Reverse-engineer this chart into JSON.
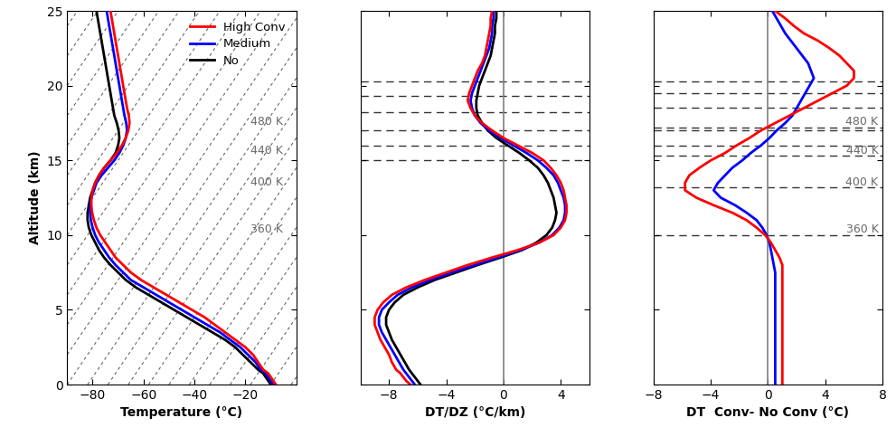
{
  "ylim": [
    0,
    25
  ],
  "yticks": [
    0,
    5,
    10,
    15,
    20,
    25
  ],
  "ylabel": "Altitude (km)",
  "xlim_temp": [
    -90,
    0
  ],
  "xticks_temp": [
    -80,
    -60,
    -40,
    -20
  ],
  "xlabel_temp": "Temperature (°C)",
  "xlim_lapse": [
    -10,
    6
  ],
  "xticks_lapse": [
    -8,
    -4,
    0,
    4
  ],
  "xlabel_lapse": "DT/DZ (°C/km)",
  "xlim_diff": [
    -8,
    8
  ],
  "xticks_diff": [
    -8,
    -4,
    0,
    4,
    8
  ],
  "xlabel_diff": "DT  Conv- No Conv (°C)",
  "color_high": "#ff0000",
  "color_medium": "#0000ff",
  "color_no": "#000000",
  "theta_alts": [
    10.0,
    13.2,
    15.3,
    17.2
  ],
  "theta_labels": [
    "360 K",
    "400 K",
    "440 K",
    "480 K"
  ],
  "alt": [
    0,
    0.25,
    0.5,
    0.75,
    1,
    1.5,
    2,
    2.5,
    3,
    3.5,
    4,
    4.5,
    5,
    5.5,
    6,
    6.5,
    7,
    7.5,
    8,
    8.5,
    9,
    9.5,
    10,
    10.5,
    11,
    11.5,
    12,
    12.5,
    13,
    13.5,
    14,
    14.5,
    15,
    15.5,
    16,
    16.5,
    17,
    17.5,
    18,
    18.5,
    19,
    19.5,
    20,
    20.5,
    21,
    21.5,
    22,
    22.5,
    23,
    23.5,
    24,
    24.5,
    25
  ],
  "temp_high": [
    -8,
    -9,
    -10,
    -11,
    -13,
    -15,
    -17,
    -20,
    -24,
    -28,
    -32,
    -36,
    -41,
    -46,
    -51,
    -56,
    -61,
    -65,
    -68,
    -71,
    -73,
    -75,
    -77,
    -78.5,
    -79.5,
    -80.2,
    -80.5,
    -80.5,
    -80.0,
    -79.0,
    -77.5,
    -75.5,
    -73.0,
    -70.5,
    -68.5,
    -67.0,
    -66.0,
    -65.5,
    -65.8,
    -66.5,
    -67.0,
    -67.5,
    -68.0,
    -68.5,
    -69.0,
    -69.5,
    -70.0,
    -70.5,
    -71.0,
    -71.5,
    -72.0,
    -72.5,
    -73.0
  ],
  "temp_medium": [
    -9,
    -10,
    -11,
    -12,
    -14,
    -16,
    -19,
    -22,
    -26,
    -30,
    -35,
    -40,
    -45,
    -50,
    -55,
    -60,
    -65,
    -68,
    -71,
    -73.5,
    -75.5,
    -77.5,
    -79.0,
    -80.0,
    -80.7,
    -81.0,
    -81.0,
    -80.5,
    -79.5,
    -78.5,
    -76.5,
    -74.0,
    -71.5,
    -69.5,
    -68.0,
    -67.0,
    -66.5,
    -66.8,
    -67.5,
    -68.0,
    -68.5,
    -69.0,
    -69.5,
    -70.0,
    -70.5,
    -71.0,
    -71.5,
    -72.0,
    -72.5,
    -73.0,
    -73.5,
    -74.0,
    -74.5
  ],
  "temp_no": [
    -10,
    -11,
    -12,
    -13,
    -15,
    -18,
    -21,
    -24,
    -28,
    -33,
    -38,
    -43,
    -48,
    -53,
    -58,
    -63,
    -67,
    -70,
    -73,
    -75.5,
    -77.5,
    -79.0,
    -80.5,
    -81.5,
    -82.0,
    -82.0,
    -81.5,
    -81.0,
    -80.0,
    -79.0,
    -77.5,
    -75.5,
    -73.0,
    -71.0,
    -70.0,
    -69.5,
    -69.8,
    -70.5,
    -71.5,
    -72.0,
    -72.5,
    -73.0,
    -73.5,
    -74.0,
    -74.5,
    -75.0,
    -75.5,
    -76.0,
    -76.5,
    -77.0,
    -77.5,
    -78.0,
    -78.5
  ],
  "lapse_high": [
    -6.5,
    -6.8,
    -7.0,
    -7.2,
    -7.5,
    -7.8,
    -8.0,
    -8.3,
    -8.6,
    -8.8,
    -9.0,
    -9.0,
    -8.8,
    -8.4,
    -7.8,
    -6.8,
    -5.5,
    -4.0,
    -2.5,
    -0.8,
    1.0,
    2.5,
    3.5,
    4.0,
    4.3,
    4.4,
    4.4,
    4.3,
    4.2,
    4.0,
    3.7,
    3.3,
    2.8,
    2.0,
    1.0,
    0.0,
    -0.8,
    -1.5,
    -2.0,
    -2.3,
    -2.5,
    -2.4,
    -2.2,
    -2.0,
    -1.8,
    -1.5,
    -1.3,
    -1.2,
    -1.1,
    -1.0,
    -0.9,
    -0.9,
    -0.8
  ],
  "lapse_medium": [
    -6.2,
    -6.4,
    -6.6,
    -6.8,
    -7.0,
    -7.3,
    -7.6,
    -7.9,
    -8.2,
    -8.5,
    -8.7,
    -8.7,
    -8.5,
    -8.0,
    -7.4,
    -6.4,
    -5.1,
    -3.6,
    -2.0,
    -0.4,
    1.2,
    2.5,
    3.4,
    3.9,
    4.2,
    4.3,
    4.3,
    4.2,
    4.0,
    3.8,
    3.5,
    3.0,
    2.4,
    1.6,
    0.7,
    -0.2,
    -1.0,
    -1.6,
    -2.0,
    -2.2,
    -2.3,
    -2.2,
    -2.0,
    -1.8,
    -1.6,
    -1.4,
    -1.2,
    -1.0,
    -0.9,
    -0.8,
    -0.8,
    -0.7,
    -0.7
  ],
  "lapse_no": [
    -5.8,
    -6.0,
    -6.2,
    -6.4,
    -6.6,
    -6.9,
    -7.2,
    -7.5,
    -7.8,
    -8.0,
    -8.2,
    -8.2,
    -8.0,
    -7.6,
    -7.0,
    -6.0,
    -4.8,
    -3.3,
    -1.8,
    -0.2,
    1.3,
    2.3,
    3.0,
    3.4,
    3.6,
    3.7,
    3.6,
    3.5,
    3.3,
    3.1,
    2.8,
    2.4,
    1.8,
    1.1,
    0.3,
    -0.5,
    -1.1,
    -1.5,
    -1.8,
    -1.9,
    -1.9,
    -1.8,
    -1.7,
    -1.5,
    -1.3,
    -1.1,
    -0.9,
    -0.8,
    -0.7,
    -0.6,
    -0.6,
    -0.5,
    -0.5
  ],
  "diff_high": [
    1.0,
    1.0,
    1.0,
    1.0,
    1.0,
    1.0,
    1.0,
    1.0,
    1.0,
    1.0,
    1.0,
    1.0,
    1.0,
    1.0,
    1.0,
    1.0,
    1.0,
    1.0,
    1.0,
    0.8,
    0.5,
    0.2,
    -0.2,
    -0.8,
    -1.5,
    -2.5,
    -3.8,
    -5.0,
    -5.8,
    -5.8,
    -5.5,
    -4.8,
    -4.0,
    -3.0,
    -2.2,
    -1.3,
    -0.5,
    0.5,
    1.5,
    2.5,
    3.5,
    4.5,
    5.5,
    6.0,
    6.0,
    5.5,
    5.0,
    4.3,
    3.5,
    2.5,
    1.8,
    1.2,
    0.5
  ],
  "diff_medium": [
    0.5,
    0.5,
    0.5,
    0.5,
    0.5,
    0.5,
    0.5,
    0.5,
    0.5,
    0.5,
    0.5,
    0.5,
    0.5,
    0.5,
    0.5,
    0.5,
    0.5,
    0.5,
    0.4,
    0.3,
    0.2,
    0.1,
    -0.1,
    -0.4,
    -0.8,
    -1.5,
    -2.3,
    -3.3,
    -3.8,
    -3.5,
    -3.0,
    -2.5,
    -1.8,
    -1.2,
    -0.5,
    0.1,
    0.6,
    1.2,
    1.7,
    2.0,
    2.3,
    2.6,
    2.9,
    3.2,
    3.0,
    2.8,
    2.4,
    2.0,
    1.6,
    1.2,
    0.9,
    0.6,
    0.3
  ],
  "legend_labels": [
    "High Conv",
    "Medium",
    "No"
  ]
}
